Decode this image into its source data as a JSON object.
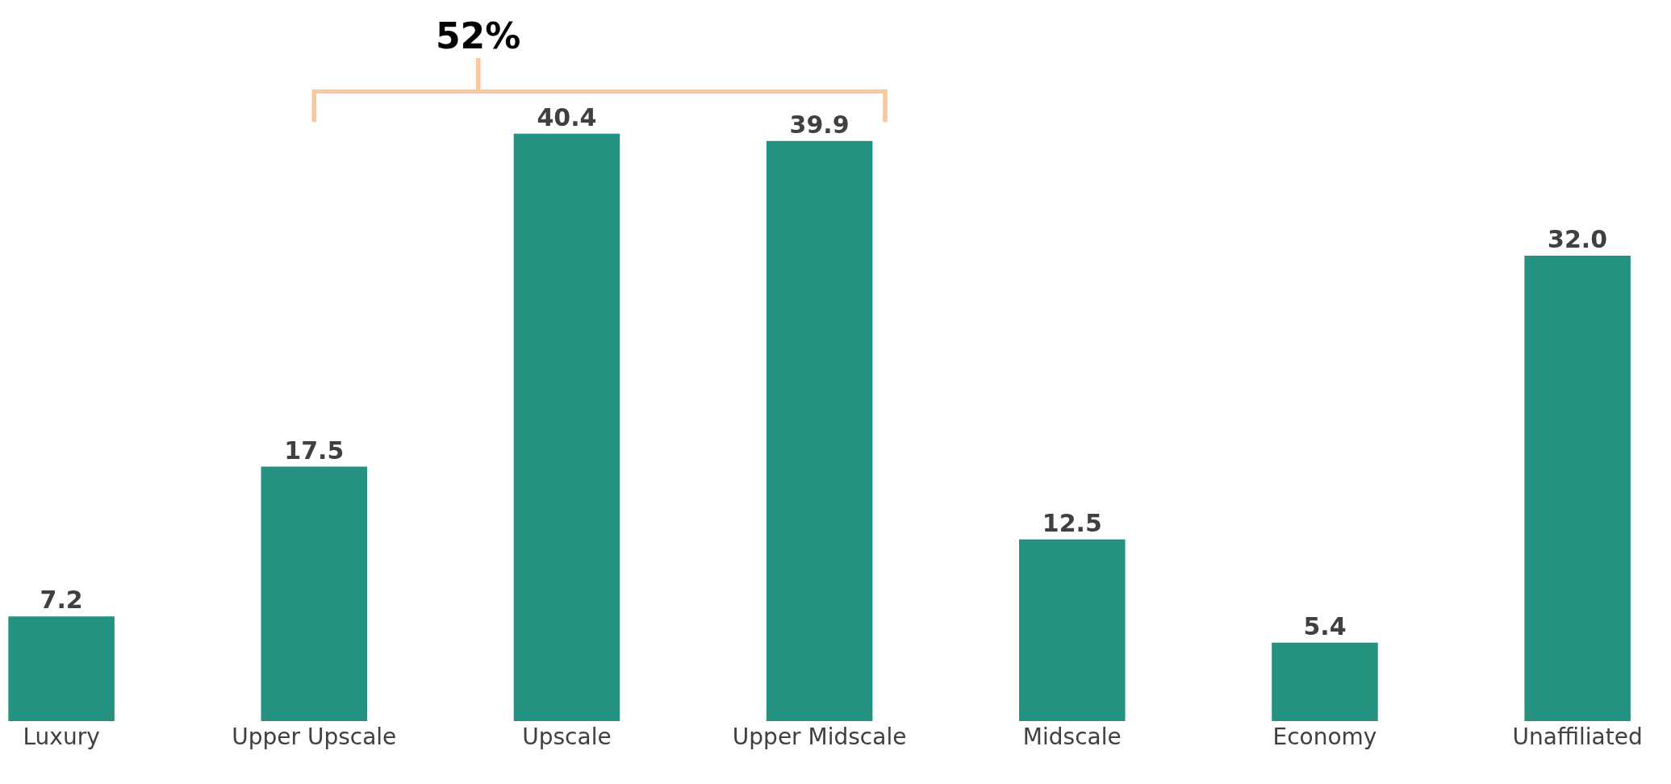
{
  "chart_data": {
    "type": "bar",
    "categories": [
      "Luxury",
      "Upper Upscale",
      "Upscale",
      "Upper Midscale",
      "Midscale",
      "Economy",
      "Unaffiliated"
    ],
    "values": [
      7.2,
      17.5,
      40.4,
      39.9,
      12.5,
      5.4,
      32.0
    ],
    "value_labels": [
      "7.2",
      "17.5",
      "40.4",
      "39.9",
      "12.5",
      "5.4",
      "32.0"
    ],
    "color": "#259281",
    "annotations": [
      "52%"
    ],
    "grid": false,
    "legend": false
  }
}
